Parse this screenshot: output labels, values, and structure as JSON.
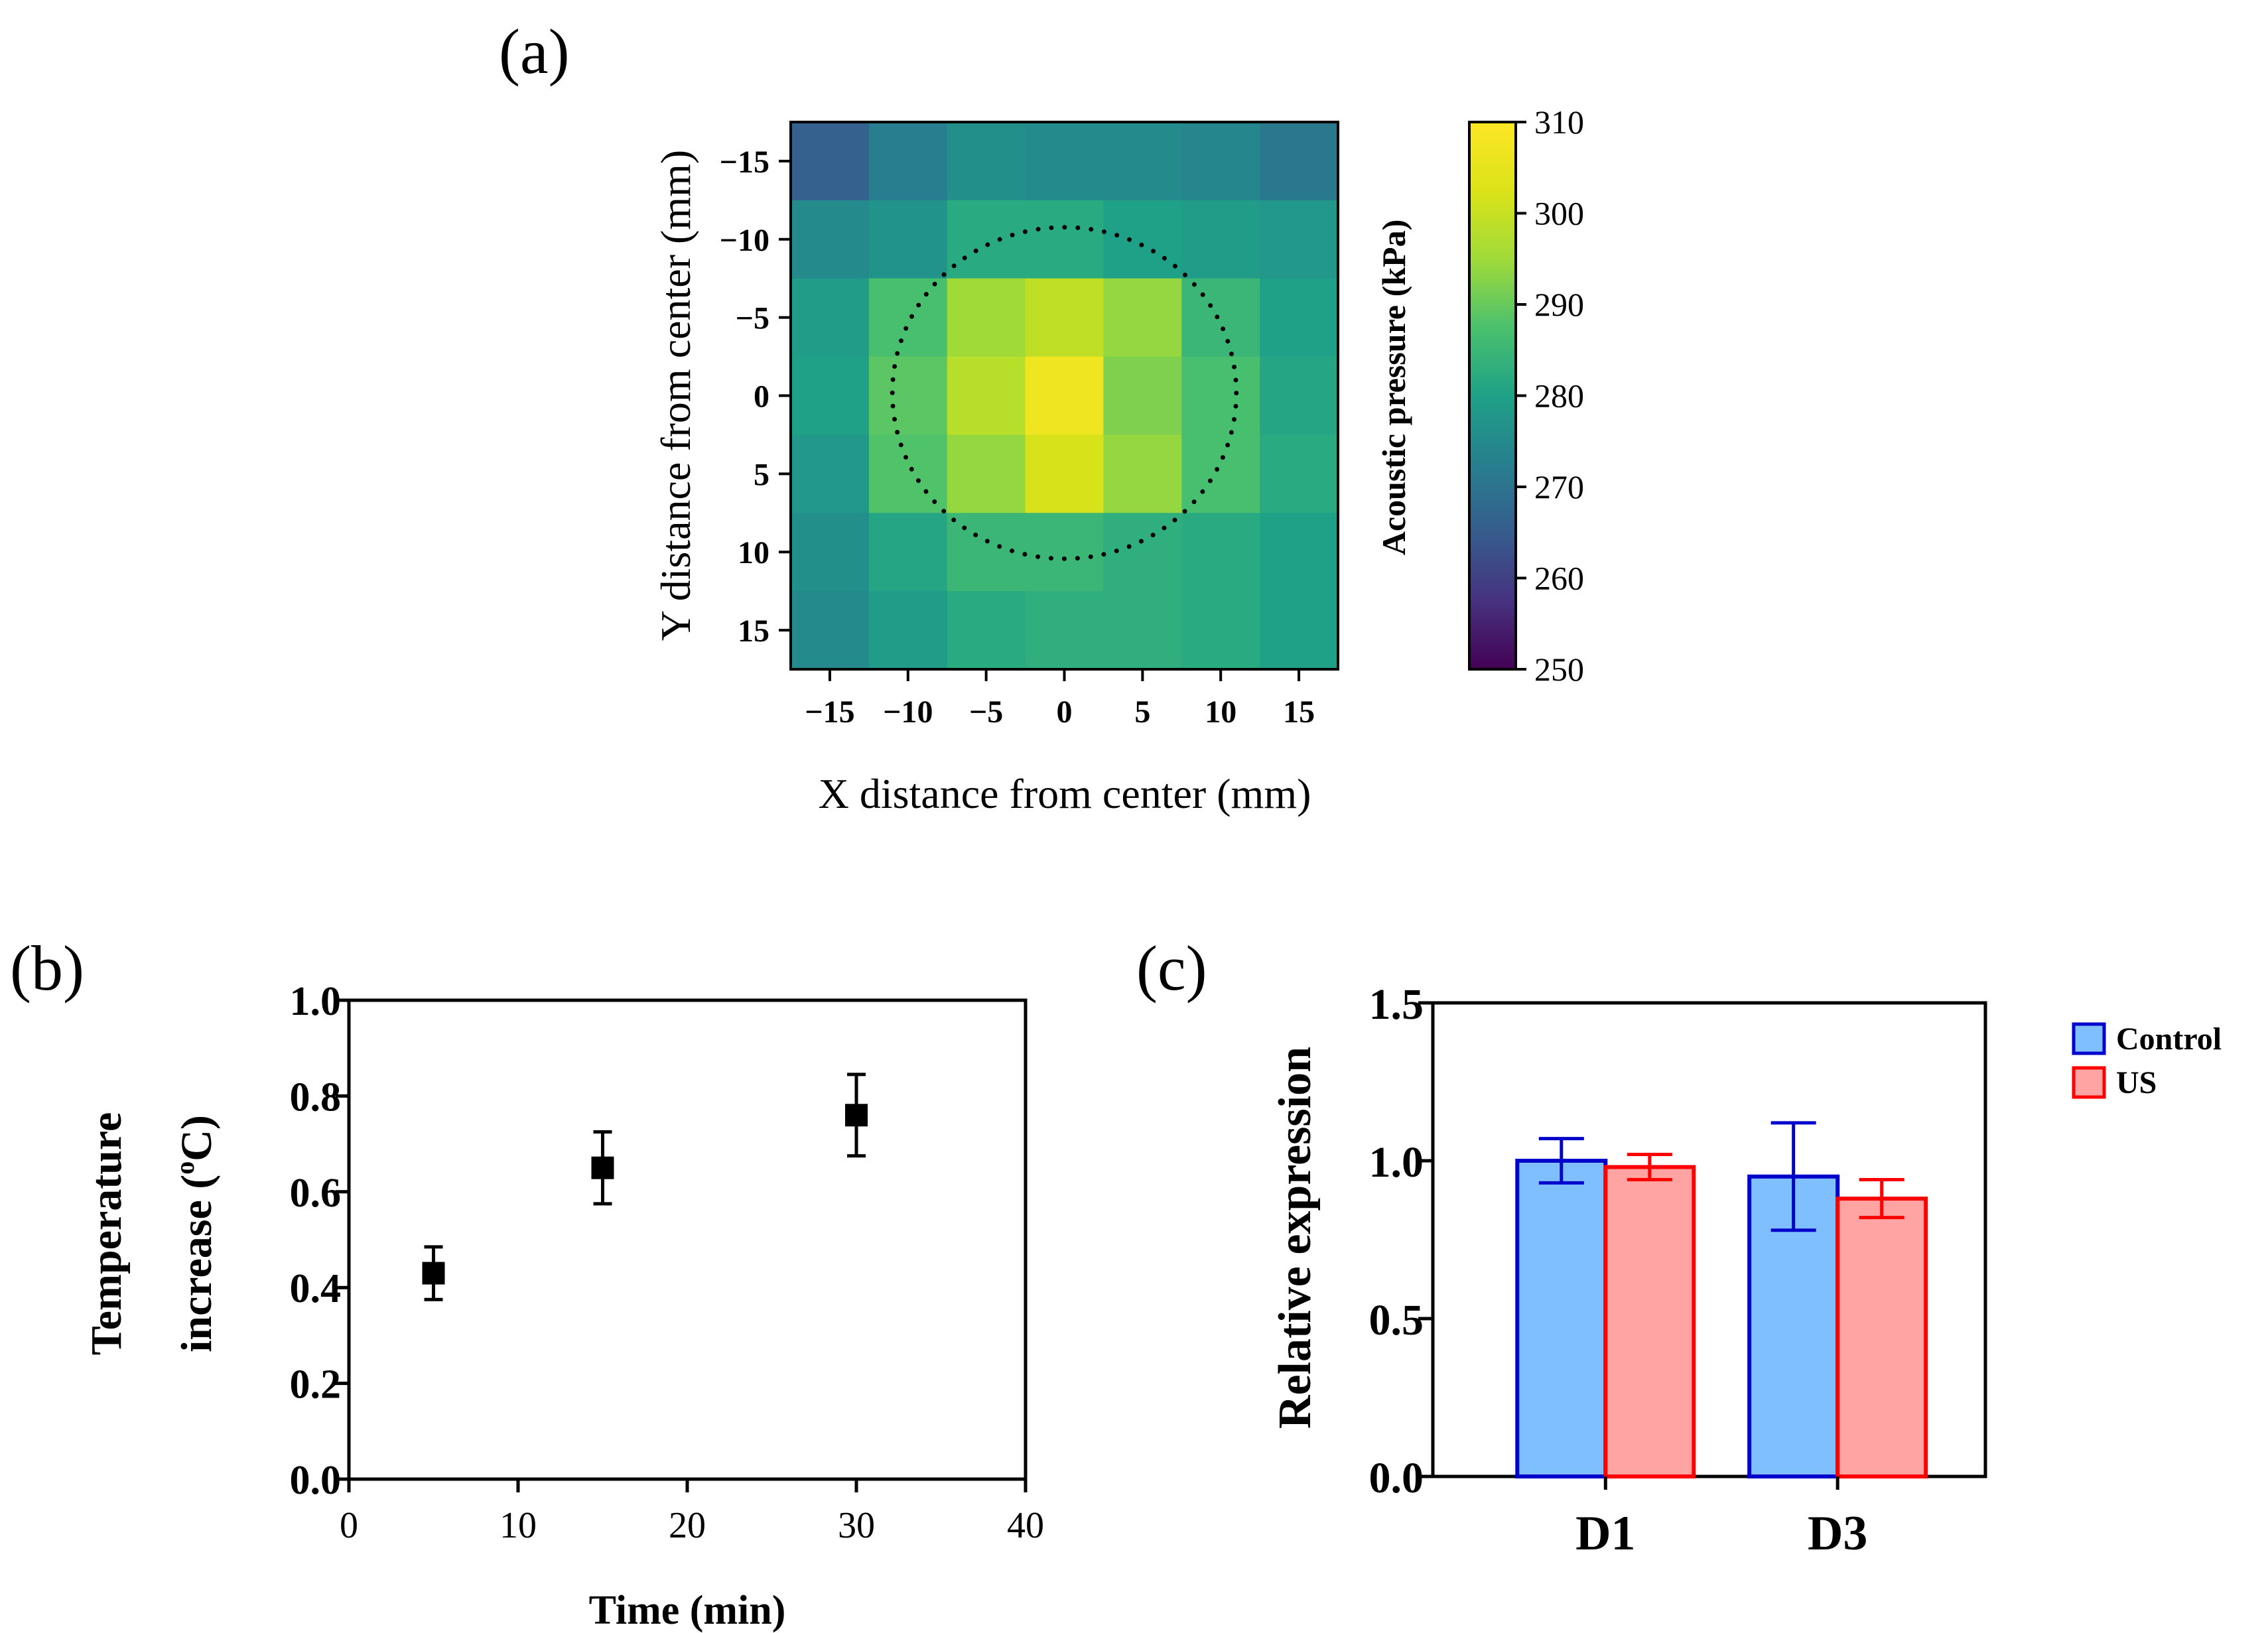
{
  "figure": {
    "panel_labels": [
      "(a)",
      "(b)",
      "(c)"
    ]
  },
  "chart_data": [
    {
      "type": "heatmap",
      "title": "",
      "xlabel": "X distance from center (mm)",
      "ylabel": "Y distance from center (mm)",
      "x": [
        -15,
        -10,
        -5,
        0,
        5,
        10,
        15
      ],
      "y": [
        -15,
        -10,
        -5,
        0,
        5,
        10,
        15
      ],
      "x_ticks": [
        "−15",
        "−10",
        "−5",
        "0",
        "5",
        "10",
        "15"
      ],
      "y_ticks": [
        "−15",
        "−10",
        "−5",
        "0",
        "5",
        "10",
        "15"
      ],
      "z": [
        [
          266,
          272,
          276,
          275,
          275,
          274,
          271
        ],
        [
          275,
          277,
          282,
          282,
          280,
          279,
          278
        ],
        [
          279,
          287,
          295,
          299,
          294,
          285,
          280
        ],
        [
          280,
          289,
          298,
          307,
          292,
          287,
          281
        ],
        [
          278,
          288,
          294,
          302,
          294,
          287,
          282
        ],
        [
          276,
          281,
          285,
          285,
          283,
          282,
          280
        ],
        [
          275,
          279,
          282,
          283,
          283,
          282,
          280
        ]
      ],
      "colorbar": {
        "label": "Acoustic pressure (kPa)",
        "range": [
          250,
          310
        ],
        "ticks": [
          "250",
          "260",
          "270",
          "280",
          "290",
          "300",
          "310"
        ],
        "colormap": "viridis"
      },
      "annotation": "dotted circle of radius ~11 mm centered at origin"
    },
    {
      "type": "scatter",
      "title": "",
      "xlabel": "Time (min)",
      "ylabel_line1": "Temperature",
      "ylabel_line2": "increase (",
      "ylabel_sup": "o",
      "ylabel_unit": "C)",
      "x": [
        5,
        15,
        30
      ],
      "y": [
        0.43,
        0.65,
        0.76
      ],
      "error": [
        0.055,
        0.075,
        0.085
      ],
      "xlim": [
        0,
        40
      ],
      "ylim": [
        0,
        1.0
      ],
      "x_ticks": [
        "0",
        "10",
        "20",
        "30",
        "40"
      ],
      "y_ticks": [
        "0.0",
        "0.2",
        "0.4",
        "0.6",
        "0.8",
        "1.0"
      ],
      "marker_color": "#000000"
    },
    {
      "type": "bar",
      "title": "",
      "xlabel": "",
      "ylabel": "Relative expression",
      "categories": [
        "D1",
        "D3"
      ],
      "ylim": [
        0,
        1.5
      ],
      "y_ticks": [
        "0.0",
        "0.5",
        "1.0",
        "1.5"
      ],
      "series": [
        {
          "name": "Control",
          "values": [
            1.0,
            0.95
          ],
          "error": [
            0.07,
            0.17
          ],
          "fill": "#80bfff",
          "stroke": "#0000cc"
        },
        {
          "name": "US",
          "values": [
            0.98,
            0.88
          ],
          "error": [
            0.04,
            0.06
          ],
          "fill": "#ffa3a3",
          "stroke": "#ff0000"
        }
      ],
      "legend": [
        "Control",
        "US"
      ],
      "legend_position": "right"
    }
  ]
}
